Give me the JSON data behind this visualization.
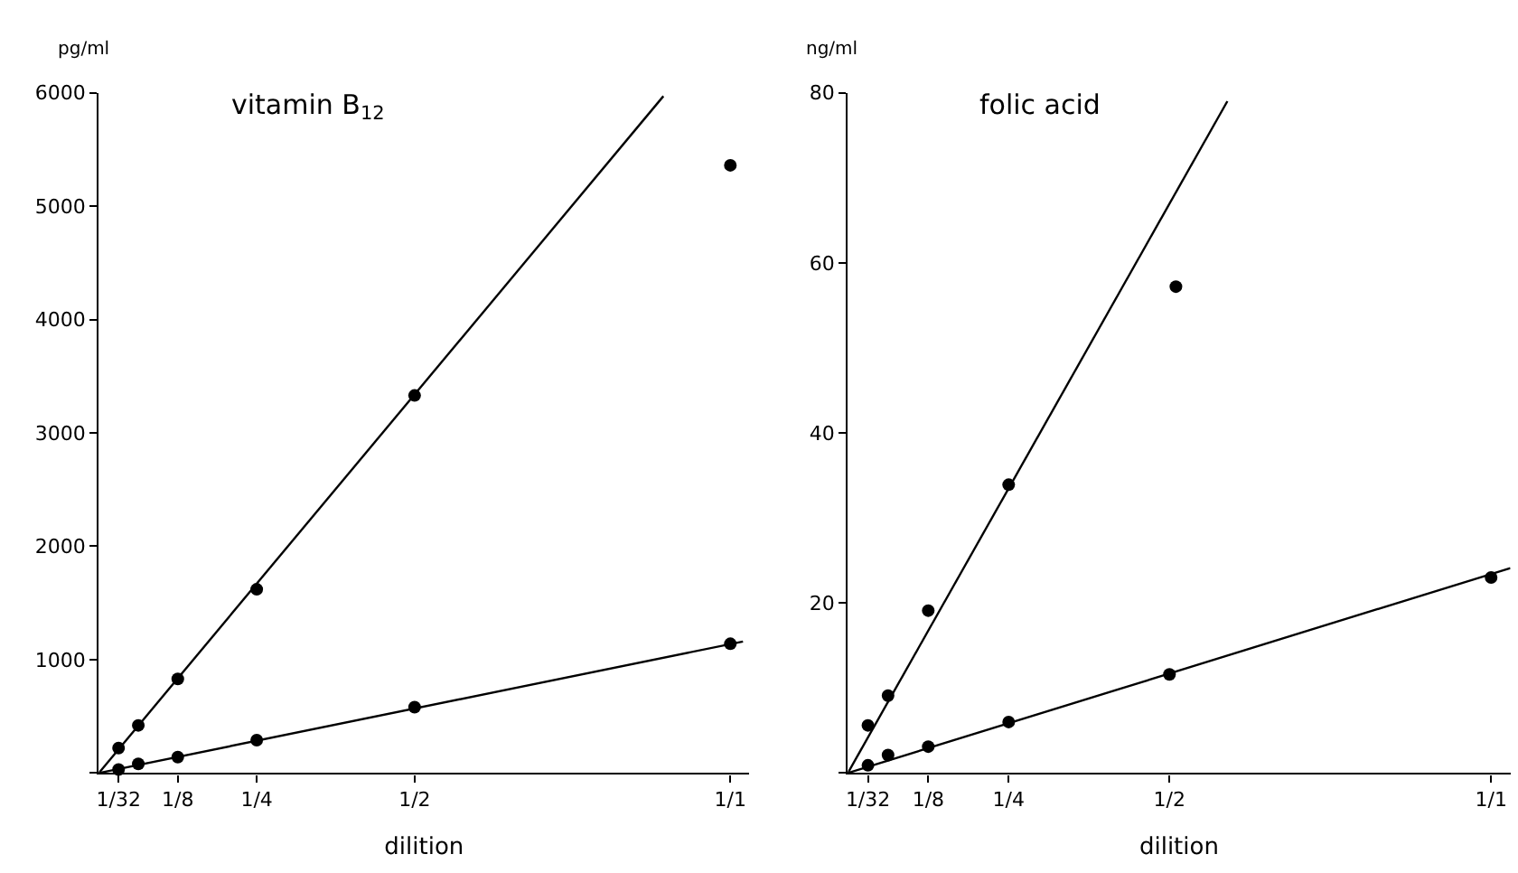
{
  "chart_data": [
    {
      "type": "scatter",
      "title": "vitamin B$_{12}$",
      "xlabel": "dilition",
      "ylabel": "pg/ml",
      "marker": "circle",
      "xlim": [
        0,
        1.03
      ],
      "xticks": [
        {
          "value": 0.03125,
          "label": "1/32"
        },
        {
          "value": 0.125,
          "label": "1/8"
        },
        {
          "value": 0.25,
          "label": "1/4"
        },
        {
          "value": 0.5,
          "label": "1/2"
        },
        {
          "value": 1,
          "label": "1/1"
        }
      ],
      "ylim": [
        0,
        6000
      ],
      "yticks": [
        {
          "value": 0,
          "label": null
        },
        1000,
        2000,
        3000,
        4000,
        5000,
        6000
      ],
      "series": [
        {
          "color": "#000000",
          "x": [
            0.03125,
            0.0625,
            0.125,
            0.25,
            0.5,
            1
          ],
          "values": [
            220,
            420,
            830,
            1620,
            3330,
            5360
          ]
        },
        {
          "color": "#000000",
          "x": [
            0.03125,
            0.0625,
            0.125,
            0.25,
            0.5,
            1
          ],
          "values": [
            30,
            80,
            140,
            290,
            580,
            1140
          ]
        },
        {
          "type": "line",
          "color": "#000000",
          "marker": "none",
          "x": [
            0,
            0.894
          ],
          "values": [
            0,
            5970
          ]
        },
        {
          "type": "line",
          "color": "#000000",
          "marker": "none",
          "x": [
            0,
            1.02
          ],
          "values": [
            0,
            1160
          ]
        }
      ]
    },
    {
      "type": "scatter",
      "title": "folic acid",
      "xlabel": "dilition",
      "ylabel": "ng/ml",
      "marker": "circle",
      "xlim": [
        0,
        1.03
      ],
      "xticks": [
        {
          "value": 0.03125,
          "label": "1/32"
        },
        {
          "value": 0.125,
          "label": "1/8"
        },
        {
          "value": 0.25,
          "label": "1/4"
        },
        {
          "value": 0.5,
          "label": "1/2"
        },
        {
          "value": 1,
          "label": "1/1"
        }
      ],
      "ylim": [
        0,
        80
      ],
      "yticks": [
        {
          "value": 0,
          "label": null
        },
        20,
        40,
        60,
        80
      ],
      "series": [
        {
          "color": "#000000",
          "x": [
            0.03125,
            0.0625,
            0.125,
            0.25,
            0.51
          ],
          "values": [
            5.6,
            9.1,
            19.1,
            33.9,
            57.2
          ]
        },
        {
          "color": "#000000",
          "x": [
            0.03125,
            0.0625,
            0.125,
            0.25,
            0.5,
            1
          ],
          "values": [
            0.9,
            2.1,
            3.1,
            6.0,
            11.6,
            23.0
          ]
        },
        {
          "type": "line",
          "color": "#000000",
          "marker": "none",
          "x": [
            0,
            0.59
          ],
          "values": [
            0,
            79
          ]
        },
        {
          "type": "line",
          "color": "#000000",
          "marker": "none",
          "x": [
            0,
            1.03
          ],
          "values": [
            0,
            24.1
          ]
        }
      ]
    }
  ]
}
